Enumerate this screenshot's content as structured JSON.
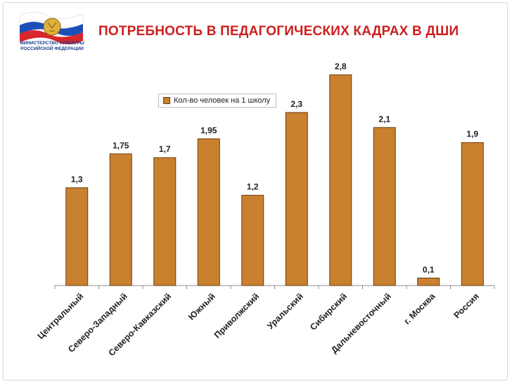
{
  "logo": {
    "line1": "МИНИСТЕРСТВО КУЛЬТУРЫ",
    "line2": "РОССИЙСКОЙ ФЕДЕРАЦИИ"
  },
  "title": "ПОТРЕБНОСТЬ В ПЕДАГОГИЧЕСКИХ КАДРАХ В ДШИ",
  "colors": {
    "bar_fill": "#c9802f",
    "bar_stroke": "#6a3f10",
    "title": "#cc1f1f",
    "flag_white": "#ffffff",
    "flag_blue": "#1d4fb8",
    "flag_red": "#d8262a"
  },
  "chart_data": {
    "type": "bar",
    "title": "ПОТРЕБНОСТЬ В ПЕДАГОГИЧЕСКИХ КАДРАХ В ДШИ",
    "categories": [
      "Центральный",
      "Северо-Западный",
      "Северо-Кавказский",
      "Южный",
      "Приволжский",
      "Уральский",
      "Сибирский",
      "Дальневосточный",
      "г. Москва",
      "Россия"
    ],
    "series": [
      {
        "name": "Кол-во человек на 1 школу",
        "values": [
          1.3,
          1.75,
          1.7,
          1.95,
          1.2,
          2.3,
          2.8,
          2.1,
          0.1,
          1.9
        ],
        "labels": [
          "1,3",
          "1,75",
          "1,7",
          "1,95",
          "1,2",
          "2,3",
          "2,8",
          "2,1",
          "0,1",
          "1,9"
        ]
      }
    ],
    "ylim": [
      0,
      3.0
    ],
    "grid": false,
    "legend": "top-center",
    "xlabel": "",
    "ylabel": ""
  }
}
